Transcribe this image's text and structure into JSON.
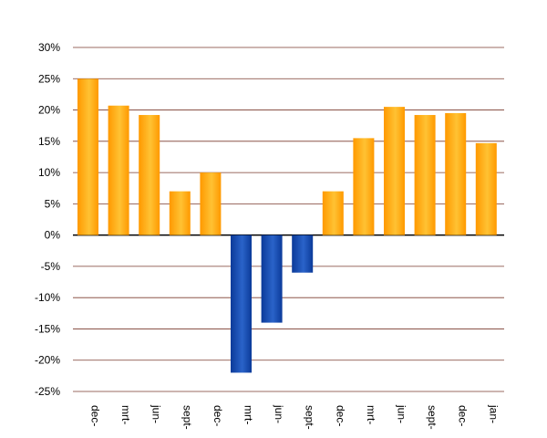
{
  "chart_data": {
    "type": "bar",
    "title": "",
    "categories": [
      "dec-",
      "mrt-",
      "jun-",
      "sept-",
      "dec-",
      "mrt-",
      "jun-",
      "sept-",
      "dec-",
      "mrt-",
      "jun-",
      "sept-",
      "dec-",
      "jan-"
    ],
    "values": [
      25,
      20.7,
      19.2,
      7,
      10,
      -22,
      -14,
      -6,
      7,
      15.5,
      20.5,
      19.2,
      19.5,
      14.7
    ],
    "y_ticks": [
      "30%",
      "25%",
      "20%",
      "15%",
      "10%",
      "5%",
      "0%",
      "-5%",
      "-10%",
      "-15%",
      "-20%",
      "-25%"
    ],
    "ylim": [
      -25,
      30
    ],
    "grid": true,
    "colors": {
      "positive": "#ff9900",
      "positive_light": "#ffc233",
      "negative": "#0b3a99",
      "negative_light": "#2a63c9",
      "grid": "#7a3a2e",
      "zero_line": "#000000",
      "text": "#000000"
    }
  }
}
